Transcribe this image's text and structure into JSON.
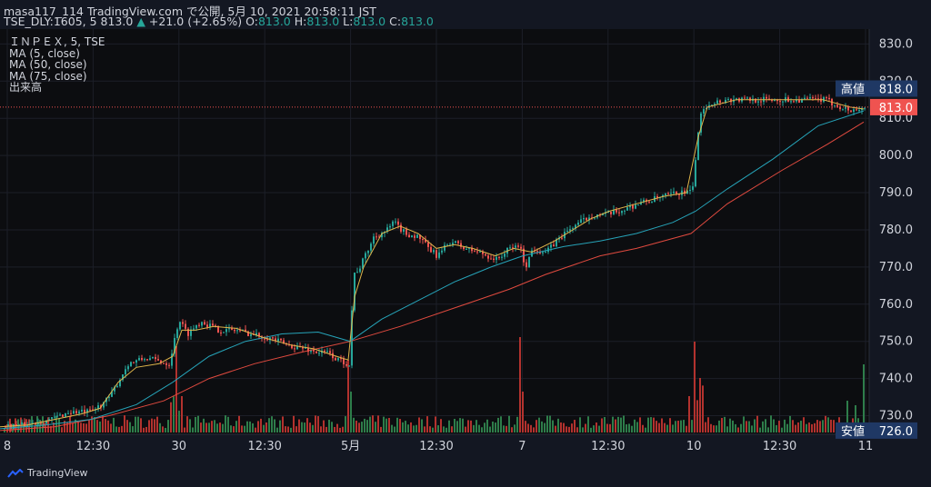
{
  "header": {
    "line1": "masa117_114 TradingView.com で公開, 5月 10, 2021 20:58:11 JST",
    "symbol": "TSE_DLY:1605, 5",
    "last": "813.0",
    "change": "+21.0 (+2.65%)",
    "ohlc": {
      "o_label": "O:",
      "o": "813.0",
      "h_label": "H:",
      "h": "813.0",
      "l_label": "L:",
      "l": "813.0",
      "c_label": "C:",
      "c": "813.0"
    }
  },
  "legend": {
    "title": "ＩＮＰＥＸ, 5, TSE",
    "items": [
      "MA (5, close)",
      "MA (50, close)",
      "MA (75, close)",
      "出来高"
    ]
  },
  "brand": {
    "name": "TradingView"
  },
  "colors": {
    "up": "#26a69a",
    "down": "#ef5350",
    "ma5": "#e0b64b",
    "ma50": "#26a3b8",
    "ma75": "#e04a3f",
    "vol_up": "#2e7d4a",
    "vol_down": "#b3322e",
    "label_bg": "#1f3864",
    "last_bg": "#ef5350"
  },
  "chart_data": {
    "type": "candlestick",
    "interval": "5min",
    "x_tick_labels": [
      "8",
      "12:30",
      "30",
      "12:30",
      "5月",
      "12:30",
      "7",
      "12:30",
      "10",
      "12:30",
      "11"
    ],
    "y_tick_labels": [
      "730.0",
      "740.0",
      "750.0",
      "760.0",
      "770.0",
      "780.0",
      "790.0",
      "800.0",
      "810.0",
      "820.0",
      "830.0"
    ],
    "ylim": [
      725,
      834
    ],
    "price_labels": [
      {
        "text": "高値",
        "value": "818.0"
      },
      {
        "text": "",
        "value": "813.0"
      },
      {
        "text": "安値",
        "value": "726.0"
      }
    ],
    "last_price": 813.0,
    "high_price": 818.0,
    "low_price": 726.0,
    "close_path": [
      [
        0,
        727
      ],
      [
        25,
        727.5
      ],
      [
        55,
        729
      ],
      [
        75,
        731
      ],
      [
        100,
        731
      ],
      [
        120,
        735
      ],
      [
        140,
        744
      ],
      [
        160,
        745.5
      ],
      [
        185,
        744
      ],
      [
        196,
        756
      ],
      [
        205,
        752
      ],
      [
        220,
        755.5
      ],
      [
        240,
        753
      ],
      [
        260,
        753
      ],
      [
        275,
        752
      ],
      [
        295,
        751
      ],
      [
        315,
        749
      ],
      [
        335,
        748
      ],
      [
        350,
        747
      ],
      [
        360,
        747
      ],
      [
        370,
        745
      ],
      [
        383,
        744
      ],
      [
        388,
        768
      ],
      [
        395,
        770
      ],
      [
        410,
        778
      ],
      [
        425,
        780
      ],
      [
        432,
        782
      ],
      [
        445,
        779
      ],
      [
        460,
        778
      ],
      [
        470,
        775
      ],
      [
        480,
        773
      ],
      [
        495,
        777
      ],
      [
        510,
        775
      ],
      [
        525,
        774
      ],
      [
        545,
        772
      ],
      [
        560,
        775
      ],
      [
        570,
        776
      ],
      [
        577,
        770
      ],
      [
        585,
        775
      ],
      [
        600,
        774
      ],
      [
        615,
        778
      ],
      [
        630,
        781
      ],
      [
        650,
        784
      ],
      [
        665,
        784
      ],
      [
        680,
        785
      ],
      [
        700,
        787
      ],
      [
        715,
        788
      ],
      [
        730,
        789
      ],
      [
        745,
        790
      ],
      [
        760,
        790
      ],
      [
        770,
        812
      ],
      [
        778,
        814
      ],
      [
        800,
        815
      ],
      [
        830,
        815
      ],
      [
        860,
        815
      ],
      [
        880,
        815
      ],
      [
        905,
        815
      ],
      [
        935,
        812
      ],
      [
        950,
        813
      ]
    ],
    "ma5_path": [
      [
        0,
        727
      ],
      [
        30,
        727.5
      ],
      [
        60,
        729
      ],
      [
        90,
        730.5
      ],
      [
        110,
        732
      ],
      [
        130,
        739
      ],
      [
        150,
        743
      ],
      [
        175,
        744
      ],
      [
        190,
        746
      ],
      [
        200,
        753
      ],
      [
        215,
        753
      ],
      [
        235,
        754
      ],
      [
        260,
        753.5
      ],
      [
        290,
        751
      ],
      [
        320,
        749
      ],
      [
        345,
        748
      ],
      [
        370,
        746
      ],
      [
        383,
        745
      ],
      [
        390,
        762
      ],
      [
        400,
        770
      ],
      [
        420,
        779
      ],
      [
        440,
        781
      ],
      [
        460,
        779
      ],
      [
        480,
        775
      ],
      [
        500,
        776
      ],
      [
        520,
        775
      ],
      [
        545,
        773
      ],
      [
        565,
        775
      ],
      [
        585,
        774
      ],
      [
        610,
        777
      ],
      [
        630,
        780
      ],
      [
        650,
        783
      ],
      [
        670,
        785
      ],
      [
        700,
        787
      ],
      [
        730,
        789
      ],
      [
        755,
        790
      ],
      [
        768,
        805
      ],
      [
        778,
        813
      ],
      [
        810,
        815
      ],
      [
        860,
        815
      ],
      [
        905,
        815
      ],
      [
        935,
        813
      ],
      [
        950,
        812.5
      ]
    ],
    "ma50_path": [
      [
        0,
        726.5
      ],
      [
        50,
        727.5
      ],
      [
        100,
        729
      ],
      [
        150,
        733
      ],
      [
        190,
        739
      ],
      [
        230,
        746
      ],
      [
        270,
        750
      ],
      [
        310,
        752
      ],
      [
        350,
        752.5
      ],
      [
        385,
        750
      ],
      [
        420,
        756
      ],
      [
        460,
        761
      ],
      [
        500,
        766
      ],
      [
        540,
        770
      ],
      [
        575,
        773
      ],
      [
        620,
        775.5
      ],
      [
        660,
        777
      ],
      [
        700,
        779
      ],
      [
        740,
        782
      ],
      [
        765,
        785
      ],
      [
        800,
        791
      ],
      [
        850,
        799
      ],
      [
        900,
        808
      ],
      [
        950,
        812
      ]
    ],
    "ma75_path": [
      [
        0,
        726
      ],
      [
        60,
        727
      ],
      [
        120,
        730
      ],
      [
        180,
        734
      ],
      [
        230,
        740
      ],
      [
        280,
        744
      ],
      [
        330,
        747
      ],
      [
        385,
        750
      ],
      [
        440,
        754
      ],
      [
        500,
        759
      ],
      [
        560,
        764
      ],
      [
        600,
        768
      ],
      [
        660,
        773
      ],
      [
        700,
        775
      ],
      [
        760,
        779
      ],
      [
        800,
        787
      ],
      [
        860,
        796
      ],
      [
        910,
        803
      ],
      [
        950,
        809
      ]
    ]
  }
}
